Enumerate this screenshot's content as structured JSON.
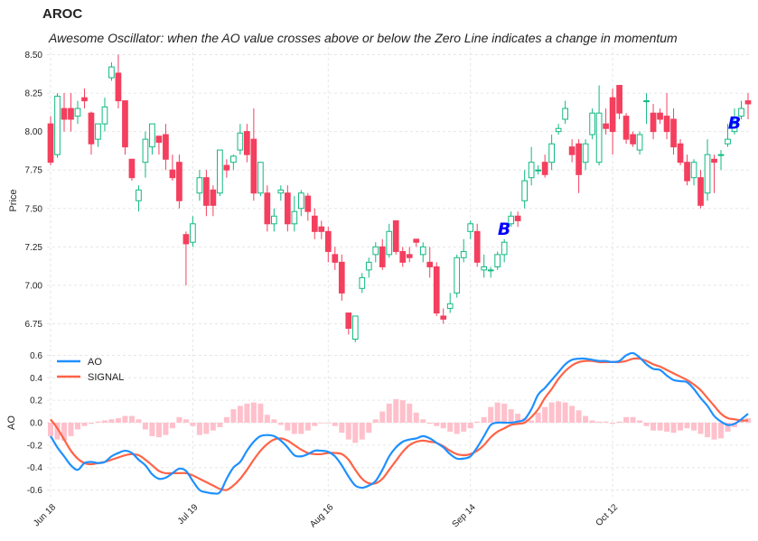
{
  "title": "AROC",
  "subtitle": "Awesome Oscillator: when the AO value crosses above or below the Zero Line indicates a change in momentum",
  "colors": {
    "up": "#10b981",
    "down": "#f43f5e",
    "ao": "#1e90ff",
    "signal": "#ff6347",
    "hist": "#ffc0cb",
    "marker": "#0000ff"
  },
  "chart_data": [
    {
      "type": "candlestick",
      "ylabel": "Price",
      "ylim": [
        6.6,
        8.55
      ],
      "yticks": [
        "6.75",
        "7.00",
        "7.25",
        "7.50",
        "7.75",
        "8.00",
        "8.25",
        "8.50"
      ],
      "xticks": [
        "Jun 18",
        "Jul 19",
        "Aug 16",
        "Sep 14",
        "Oct 12"
      ],
      "xtick_index": [
        0,
        21,
        41,
        62,
        83
      ],
      "grid": true,
      "marker_text": "B",
      "buy_markers": [
        {
          "index": 67,
          "y": 7.37
        },
        {
          "index": 101,
          "y": 8.06
        }
      ],
      "candles": [
        [
          8.05,
          7.8,
          8.1,
          7.78
        ],
        [
          7.85,
          8.23,
          8.25,
          7.83
        ],
        [
          8.15,
          8.08,
          8.25,
          8.0
        ],
        [
          8.15,
          8.08,
          8.25,
          8.0
        ],
        [
          8.1,
          8.15,
          8.2,
          8.05
        ],
        [
          8.22,
          8.2,
          8.28,
          8.15
        ],
        [
          8.12,
          7.92,
          8.13,
          7.85
        ],
        [
          7.95,
          8.05,
          8.05,
          7.9
        ],
        [
          8.05,
          8.16,
          8.22,
          8.0
        ],
        [
          8.35,
          8.42,
          8.45,
          8.33
        ],
        [
          8.38,
          8.2,
          8.5,
          8.15
        ],
        [
          8.2,
          7.9,
          8.2,
          7.85
        ],
        [
          7.82,
          7.7,
          7.82,
          7.68
        ],
        [
          7.55,
          7.62,
          7.65,
          7.48
        ],
        [
          7.8,
          7.95,
          8.0,
          7.7
        ],
        [
          7.9,
          8.05,
          8.05,
          7.85
        ],
        [
          7.97,
          7.93,
          7.97,
          7.85
        ],
        [
          7.98,
          7.82,
          8.05,
          7.75
        ],
        [
          7.75,
          7.7,
          7.85,
          7.68
        ],
        [
          7.8,
          7.55,
          7.85,
          7.5
        ],
        [
          7.33,
          7.27,
          7.35,
          7.0
        ],
        [
          7.28,
          7.4,
          7.45,
          7.25
        ],
        [
          7.6,
          7.7,
          7.75,
          7.55
        ],
        [
          7.7,
          7.52,
          7.75,
          7.45
        ],
        [
          7.62,
          7.52,
          7.65,
          7.45
        ],
        [
          7.6,
          7.88,
          7.88,
          7.58
        ],
        [
          7.78,
          7.75,
          7.82,
          7.7
        ],
        [
          7.8,
          7.84,
          7.85,
          7.75
        ],
        [
          7.88,
          7.99,
          8.05,
          7.85
        ],
        [
          8.0,
          7.85,
          8.05,
          7.8
        ],
        [
          7.95,
          7.6,
          8.15,
          7.55
        ],
        [
          7.6,
          7.8,
          7.8,
          7.58
        ],
        [
          7.6,
          7.4,
          7.65,
          7.35
        ],
        [
          7.4,
          7.45,
          7.5,
          7.35
        ],
        [
          7.6,
          7.62,
          7.65,
          7.55
        ],
        [
          7.6,
          7.4,
          7.65,
          7.35
        ],
        [
          7.4,
          7.48,
          7.58,
          7.35
        ],
        [
          7.5,
          7.6,
          7.62,
          7.45
        ],
        [
          7.58,
          7.48,
          7.6,
          7.42
        ],
        [
          7.45,
          7.35,
          7.5,
          7.3
        ],
        [
          7.38,
          7.35,
          7.42,
          7.3
        ],
        [
          7.35,
          7.22,
          7.38,
          7.15
        ],
        [
          7.2,
          7.15,
          7.25,
          7.1
        ],
        [
          7.15,
          6.95,
          7.2,
          6.9
        ],
        [
          6.82,
          6.72,
          6.82,
          6.68
        ],
        [
          6.65,
          6.8,
          6.8,
          6.63
        ],
        [
          6.98,
          7.05,
          7.08,
          6.95
        ],
        [
          7.1,
          7.15,
          7.18,
          7.05
        ],
        [
          7.2,
          7.25,
          7.28,
          7.15
        ],
        [
          7.25,
          7.12,
          7.3,
          7.1
        ],
        [
          7.2,
          7.35,
          7.4,
          7.18
        ],
        [
          7.42,
          7.22,
          7.42,
          7.2
        ],
        [
          7.22,
          7.15,
          7.25,
          7.12
        ],
        [
          7.2,
          7.18,
          7.25,
          7.15
        ],
        [
          7.3,
          7.28,
          7.3,
          7.25
        ],
        [
          7.2,
          7.25,
          7.28,
          7.15
        ],
        [
          7.15,
          7.12,
          7.25,
          7.05
        ],
        [
          7.12,
          6.82,
          7.15,
          6.8
        ],
        [
          6.8,
          6.78,
          6.85,
          6.75
        ],
        [
          6.85,
          6.88,
          6.95,
          6.82
        ],
        [
          6.95,
          7.18,
          7.2,
          6.92
        ],
        [
          7.18,
          7.22,
          7.3,
          7.15
        ],
        [
          7.35,
          7.4,
          7.42,
          7.3
        ],
        [
          7.35,
          7.15,
          7.4,
          7.12
        ],
        [
          7.1,
          7.12,
          7.2,
          7.05
        ],
        [
          7.1,
          7.1,
          7.12,
          7.05
        ],
        [
          7.12,
          7.2,
          7.22,
          7.1
        ],
        [
          7.2,
          7.28,
          7.3,
          7.15
        ],
        [
          7.4,
          7.45,
          7.48,
          7.38
        ],
        [
          7.45,
          7.42,
          7.48,
          7.38
        ],
        [
          7.55,
          7.68,
          7.75,
          7.5
        ],
        [
          7.7,
          7.8,
          7.9,
          7.65
        ],
        [
          7.75,
          7.75,
          7.78,
          7.72
        ],
        [
          7.8,
          7.72,
          7.85,
          7.7
        ],
        [
          7.8,
          7.92,
          7.98,
          7.75
        ],
        [
          8.0,
          8.02,
          8.05,
          7.98
        ],
        [
          8.08,
          8.15,
          8.2,
          8.05
        ],
        [
          7.9,
          7.85,
          7.95,
          7.8
        ],
        [
          7.92,
          7.72,
          7.95,
          7.6
        ],
        [
          7.8,
          7.92,
          7.95,
          7.75
        ],
        [
          7.98,
          8.12,
          8.15,
          7.95
        ],
        [
          7.8,
          8.12,
          8.3,
          7.78
        ],
        [
          8.05,
          8.02,
          8.15,
          7.98
        ],
        [
          8.22,
          8.0,
          8.28,
          7.85
        ],
        [
          8.3,
          8.12,
          8.3,
          8.08
        ],
        [
          8.1,
          7.95,
          8.12,
          7.92
        ],
        [
          7.98,
          7.92,
          8.0,
          7.9
        ],
        [
          7.88,
          7.98,
          8.0,
          7.85
        ],
        [
          8.2,
          8.2,
          8.25,
          8.05
        ],
        [
          8.12,
          8.0,
          8.18,
          7.95
        ],
        [
          8.12,
          8.08,
          8.15,
          8.05
        ],
        [
          8.1,
          8.0,
          8.25,
          7.95
        ],
        [
          8.08,
          7.9,
          8.15,
          7.85
        ],
        [
          7.92,
          7.8,
          7.95,
          7.78
        ],
        [
          7.8,
          7.68,
          7.85,
          7.65
        ],
        [
          7.7,
          7.8,
          7.82,
          7.65
        ],
        [
          7.7,
          7.52,
          7.75,
          7.5
        ],
        [
          7.6,
          7.85,
          7.95,
          7.55
        ],
        [
          7.82,
          7.8,
          7.85,
          7.6
        ],
        [
          7.85,
          7.85,
          7.88,
          7.75
        ],
        [
          7.92,
          7.95,
          8.05,
          7.9
        ],
        [
          8.0,
          8.05,
          8.15,
          7.98
        ],
        [
          8.1,
          8.15,
          8.2,
          8.08
        ],
        [
          8.2,
          8.18,
          8.25,
          8.08
        ]
      ]
    },
    {
      "type": "line",
      "ylabel": "AO",
      "ylim": [
        -0.66,
        0.66
      ],
      "yticks": [
        "-0.6",
        "-0.4",
        "-0.2",
        "0.0",
        "0.2",
        "0.4",
        "0.6"
      ],
      "series": [
        {
          "name": "AO",
          "values": [
            -0.12,
            -0.22,
            -0.3,
            -0.38,
            -0.42,
            -0.36,
            -0.35,
            -0.36,
            -0.35,
            -0.3,
            -0.27,
            -0.25,
            -0.27,
            -0.33,
            -0.38,
            -0.46,
            -0.5,
            -0.49,
            -0.45,
            -0.41,
            -0.43,
            -0.52,
            -0.6,
            -0.62,
            -0.63,
            -0.62,
            -0.5,
            -0.4,
            -0.35,
            -0.25,
            -0.17,
            -0.12,
            -0.11,
            -0.12,
            -0.16,
            -0.22,
            -0.29,
            -0.3,
            -0.28,
            -0.25,
            -0.25,
            -0.26,
            -0.3,
            -0.38,
            -0.48,
            -0.56,
            -0.58,
            -0.56,
            -0.52,
            -0.42,
            -0.3,
            -0.22,
            -0.17,
            -0.15,
            -0.14,
            -0.12,
            -0.14,
            -0.18,
            -0.22,
            -0.28,
            -0.32,
            -0.32,
            -0.3,
            -0.22,
            -0.12,
            -0.02,
            0.0,
            0.0,
            0.0,
            0.01,
            0.03,
            0.12,
            0.25,
            0.31,
            0.38,
            0.45,
            0.52,
            0.56,
            0.57,
            0.57,
            0.56,
            0.55,
            0.55,
            0.54,
            0.55,
            0.6,
            0.62,
            0.58,
            0.52,
            0.48,
            0.47,
            0.42,
            0.38,
            0.37,
            0.36,
            0.3,
            0.22,
            0.15,
            0.06,
            0.01,
            -0.02,
            -0.01,
            0.03,
            0.08
          ]
        },
        {
          "name": "SIGNAL",
          "values": [
            0.03,
            -0.05,
            -0.15,
            -0.25,
            -0.32,
            -0.36,
            -0.37,
            -0.36,
            -0.35,
            -0.33,
            -0.31,
            -0.29,
            -0.28,
            -0.29,
            -0.33,
            -0.38,
            -0.43,
            -0.45,
            -0.45,
            -0.45,
            -0.45,
            -0.47,
            -0.5,
            -0.53,
            -0.56,
            -0.59,
            -0.6,
            -0.56,
            -0.5,
            -0.42,
            -0.33,
            -0.25,
            -0.19,
            -0.15,
            -0.14,
            -0.16,
            -0.2,
            -0.24,
            -0.27,
            -0.28,
            -0.28,
            -0.27,
            -0.27,
            -0.28,
            -0.33,
            -0.42,
            -0.5,
            -0.54,
            -0.54,
            -0.5,
            -0.42,
            -0.34,
            -0.26,
            -0.2,
            -0.17,
            -0.16,
            -0.17,
            -0.18,
            -0.21,
            -0.25,
            -0.28,
            -0.29,
            -0.28,
            -0.25,
            -0.2,
            -0.13,
            -0.08,
            -0.05,
            -0.02,
            -0.01,
            0.0,
            0.05,
            0.12,
            0.22,
            0.3,
            0.39,
            0.46,
            0.51,
            0.54,
            0.55,
            0.55,
            0.54,
            0.54,
            0.54,
            0.54,
            0.55,
            0.57,
            0.57,
            0.55,
            0.52,
            0.5,
            0.47,
            0.44,
            0.41,
            0.38,
            0.34,
            0.29,
            0.22,
            0.15,
            0.08,
            0.04,
            0.03,
            0.02,
            0.02
          ]
        }
      ],
      "histogram": [
        -0.12,
        -0.15,
        -0.16,
        -0.12,
        -0.06,
        -0.03,
        -0.01,
        0.01,
        0.02,
        0.03,
        0.04,
        0.06,
        0.06,
        0.03,
        -0.06,
        -0.12,
        -0.13,
        -0.11,
        -0.05,
        0.05,
        0.03,
        -0.03,
        -0.11,
        -0.1,
        -0.07,
        -0.04,
        0.05,
        0.12,
        0.15,
        0.17,
        0.18,
        0.17,
        0.07,
        0.03,
        -0.02,
        -0.07,
        -0.1,
        -0.1,
        -0.07,
        -0.03,
        0.0,
        0.0,
        -0.03,
        -0.09,
        -0.15,
        -0.18,
        -0.15,
        -0.09,
        0.03,
        0.1,
        0.17,
        0.21,
        0.2,
        0.17,
        0.09,
        0.03,
        -0.01,
        -0.03,
        -0.05,
        -0.08,
        -0.1,
        -0.08,
        -0.05,
        0.01,
        0.05,
        0.14,
        0.18,
        0.17,
        0.12,
        0.08,
        0.04,
        0.02,
        0.09,
        0.14,
        0.18,
        0.19,
        0.18,
        0.15,
        0.11,
        0.06,
        0.02,
        0.01,
        0.01,
        -0.01,
        0.01,
        0.05,
        0.05,
        0.02,
        -0.03,
        -0.07,
        -0.07,
        -0.08,
        -0.09,
        -0.07,
        -0.05,
        -0.07,
        -0.1,
        -0.13,
        -0.15,
        -0.14,
        -0.08,
        -0.04,
        0.02,
        0.04
      ]
    }
  ]
}
